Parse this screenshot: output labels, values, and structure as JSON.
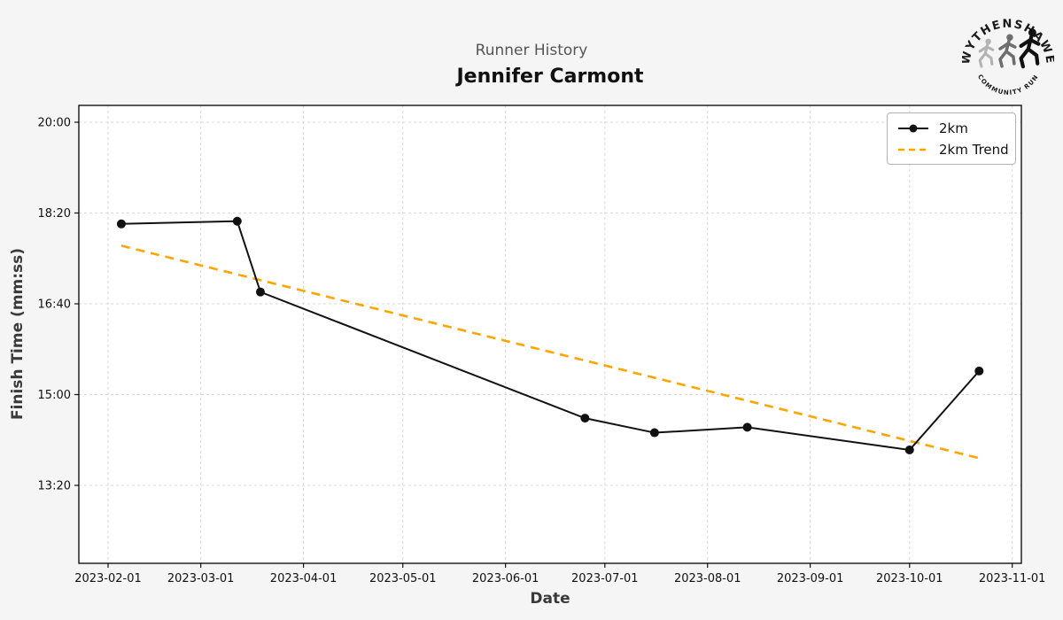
{
  "header": {
    "suptitle": "Runner History",
    "title": "Jennifer Carmont"
  },
  "logo": {
    "arc_top": "WYTHENSHAWE",
    "arc_bottom": "COMMUNITY RUN"
  },
  "legend": {
    "items": [
      {
        "label": "2km",
        "color": "#111111",
        "style": "solid_with_marker"
      },
      {
        "label": "2km Trend",
        "color": "#FFA500",
        "style": "dashed"
      }
    ]
  },
  "chart_data": {
    "type": "line",
    "title": "Runner History",
    "subtitle": "Jennifer Carmont",
    "xlabel": "Date",
    "ylabel": "Finish Time (mm:ss)",
    "grid": true,
    "legend_position": "upper right",
    "x_ticks": [
      "2023-02-01",
      "2023-03-01",
      "2023-04-01",
      "2023-05-01",
      "2023-06-01",
      "2023-07-01",
      "2023-08-01",
      "2023-09-01",
      "2023-10-01",
      "2023-11-01"
    ],
    "y_ticks": [
      "20:00",
      "18:20",
      "16:40",
      "15:00",
      "13:20"
    ],
    "series": [
      {
        "name": "2km",
        "color": "#111111",
        "marker": "circle",
        "points": [
          {
            "date": "2023-02-05",
            "time": "18:08"
          },
          {
            "date": "2023-03-12",
            "time": "18:11"
          },
          {
            "date": "2023-03-19",
            "time": "16:53"
          },
          {
            "date": "2023-06-25",
            "time": "14:34"
          },
          {
            "date": "2023-07-16",
            "time": "14:18"
          },
          {
            "date": "2023-08-13",
            "time": "14:24"
          },
          {
            "date": "2023-10-01",
            "time": "13:59"
          },
          {
            "date": "2023-10-22",
            "time": "15:26"
          }
        ]
      }
    ],
    "trend": {
      "name": "2km Trend",
      "color": "#FFA500",
      "dashed": true,
      "points": [
        {
          "date": "2023-02-05",
          "time": "17:44"
        },
        {
          "date": "2023-10-22",
          "time": "13:50"
        }
      ]
    }
  }
}
